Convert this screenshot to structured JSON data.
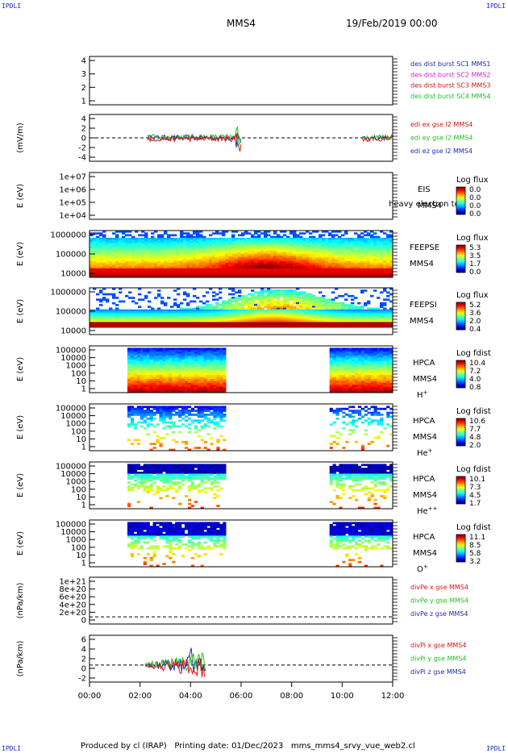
{
  "header": {
    "corner_label": "IPDLI",
    "spacecraft": "MMS4",
    "datetime": "19/Feb/2019 00:00"
  },
  "footer": {
    "produced_by": "Produced by cl (IRAP)",
    "printing_date": "Printing date: 01/Dec/2023",
    "file": "mms_mms4_srvy_vue_web2.cl"
  },
  "time_axis": {
    "ticks": [
      "00:00",
      "02:00",
      "04:00",
      "06:00",
      "08:00",
      "10:00",
      "12:00"
    ],
    "range_hours": [
      0,
      12
    ]
  },
  "panels": [
    {
      "id": "des",
      "ylabel": "",
      "yticks": [
        "4",
        "3",
        "2",
        "1"
      ],
      "legend": [
        {
          "text": "des dist burst SC1 MMS1",
          "color": "#1a2ab8"
        },
        {
          "text": "des dist burst SC2 MMS2",
          "color": "#d020d0"
        },
        {
          "text": "des dist burst SC3 MMS3",
          "color": "#e01010"
        },
        {
          "text": "des dist burst SC4 MMS4",
          "color": "#20c020"
        }
      ]
    },
    {
      "id": "edi",
      "ylabel": "(mV/m)",
      "yticks": [
        "4",
        "2",
        "0",
        "-2",
        "-4"
      ],
      "legend": [
        {
          "text": "edi ex gse l2 MMS4",
          "color": "#e01010"
        },
        {
          "text": "edi ey gse l2 MMS4",
          "color": "#20c020"
        },
        {
          "text": "edi ez gse l2 MMS4",
          "color": "#1a2ab8"
        }
      ]
    },
    {
      "id": "eis",
      "ylabel": "E (eV)",
      "yticks": [
        "1e+07",
        "1e+06",
        "1e+05",
        "1e+04"
      ],
      "instrument": [
        "EIS",
        "MMS4"
      ],
      "overlap_text": "heavy electron to",
      "colorbar": {
        "title": "Log flux",
        "ticks": [
          "0.0",
          "0.0",
          "0.0",
          "0.0"
        ]
      }
    },
    {
      "id": "feepse",
      "ylabel": "E (eV)",
      "yticks": [
        "1000000",
        "100000",
        "10000"
      ],
      "instrument": [
        "FEEPSE",
        "MMS4"
      ],
      "colorbar": {
        "title": "Log flux",
        "ticks": [
          "5.3",
          "3.5",
          "1.7",
          "0.0"
        ]
      }
    },
    {
      "id": "feepsi",
      "ylabel": "E (eV)",
      "yticks": [
        "1000000",
        "100000",
        "10000"
      ],
      "instrument": [
        "FEEPSI",
        "MMS4"
      ],
      "colorbar": {
        "title": "Log flux",
        "ticks": [
          "5.2",
          "3.6",
          "2.0",
          "0.4"
        ]
      }
    },
    {
      "id": "hpca-h",
      "ylabel": "E (eV)",
      "yticks": [
        "100000",
        "10000",
        "1000",
        "100",
        "10",
        "1"
      ],
      "instrument": [
        "HPCA",
        "MMS4"
      ],
      "species": "H",
      "charge": "+",
      "colorbar": {
        "title": "Log fdist",
        "ticks": [
          "10.4",
          "7.2",
          "4.0",
          "0.8"
        ]
      }
    },
    {
      "id": "hpca-he",
      "ylabel": "E (eV)",
      "yticks": [
        "100000",
        "10000",
        "1000",
        "100",
        "10",
        "1"
      ],
      "instrument": [
        "HPCA",
        "MMS4"
      ],
      "species": "He",
      "charge": "+",
      "colorbar": {
        "title": "Log fdist",
        "ticks": [
          "10.6",
          "7.7",
          "4.8",
          "2.0"
        ]
      }
    },
    {
      "id": "hpca-he2",
      "ylabel": "E (eV)",
      "yticks": [
        "100000",
        "10000",
        "1000",
        "100",
        "10",
        "1"
      ],
      "instrument": [
        "HPCA",
        "MMS4"
      ],
      "species": "He",
      "charge": "++",
      "colorbar": {
        "title": "Log fdist",
        "ticks": [
          "10.1",
          "7.3",
          "4.5",
          "1.7"
        ]
      }
    },
    {
      "id": "hpca-o",
      "ylabel": "E (eV)",
      "yticks": [
        "100000",
        "10000",
        "1000",
        "100",
        "10",
        "1"
      ],
      "instrument": [
        "HPCA",
        "MMS4"
      ],
      "species": "O",
      "charge": "+",
      "colorbar": {
        "title": "Log fdist",
        "ticks": [
          "11.1",
          "8.5",
          "5.8",
          "3.2"
        ]
      }
    },
    {
      "id": "divpe",
      "ylabel": "(nPa/km)",
      "yticks": [
        "1e+21",
        "8e+20",
        "6e+20",
        "4e+20",
        "2e+20",
        "0"
      ],
      "legend": [
        {
          "text": "divPe x gse MMS4",
          "color": "#e01010"
        },
        {
          "text": "divPe y gse MMS4",
          "color": "#20c020"
        },
        {
          "text": "divPe z gse MMS4",
          "color": "#1a2ab8"
        }
      ]
    },
    {
      "id": "divpi",
      "ylabel": "(nPa/km)",
      "yticks": [
        "6",
        "4",
        "2",
        "0",
        "-2"
      ],
      "legend": [
        {
          "text": "divPi x gse MMS4",
          "color": "#e01010"
        },
        {
          "text": "divPi y gse MMS4",
          "color": "#20c020"
        },
        {
          "text": "divPi z gse MMS4",
          "color": "#1a2ab8"
        }
      ]
    }
  ],
  "chart_data": {
    "type": "line",
    "title": "MMS4",
    "xlabel": "",
    "x_range_hours": [
      0,
      12
    ],
    "edi_window_hours": [
      2.3,
      6.0
    ],
    "edi_window2_hours": [
      10.8,
      12.0
    ],
    "edi_ylim": [
      -5,
      5
    ],
    "divpi_window_hours": [
      2.2,
      4.6
    ],
    "divpi_ylim": [
      -4,
      7
    ],
    "hpca_intervals_hours": [
      [
        1.5,
        5.4
      ],
      [
        9.5,
        12.0
      ]
    ],
    "grid": false
  }
}
